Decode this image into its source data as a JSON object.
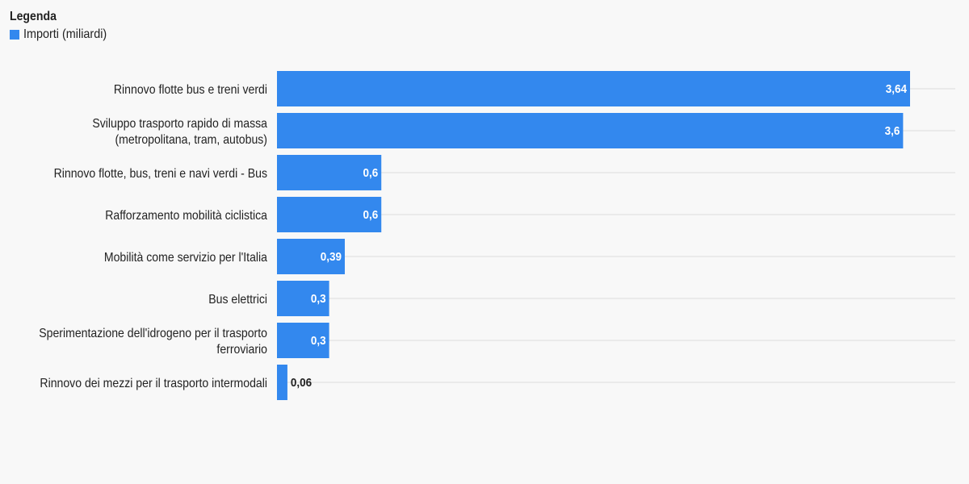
{
  "legend": {
    "title": "Legenda",
    "item_label": "Importi (miliardi)",
    "color": "#3388ee"
  },
  "chart_data": {
    "type": "bar",
    "orientation": "horizontal",
    "categories": [
      "Rinnovo flotte bus e treni verdi",
      "Sviluppo trasporto rapido di massa (metropolitana, tram, autobus)",
      "Rinnovo flotte, bus, treni e navi verdi - Bus",
      "Rafforzamento mobilità ciclistica",
      "Mobilità come servizio per l'Italia",
      "Bus elettrici",
      "Sperimentazione dell'idrogeno per il trasporto ferroviario",
      "Rinnovo dei mezzi per il trasporto intermodali"
    ],
    "category_lines": [
      [
        "Rinnovo flotte bus e treni verdi"
      ],
      [
        "Sviluppo trasporto rapido di massa",
        "(metropolitana, tram, autobus)"
      ],
      [
        "Rinnovo flotte, bus, treni e navi verdi - Bus"
      ],
      [
        "Rafforzamento mobilità ciclistica"
      ],
      [
        "Mobilità come servizio per l'Italia"
      ],
      [
        "Bus elettrici"
      ],
      [
        "Sperimentazione dell'idrogeno per il trasporto",
        "ferroviario"
      ],
      [
        "Rinnovo dei mezzi per il trasporto intermodali"
      ]
    ],
    "series": [
      {
        "name": "Importi (miliardi)",
        "values": [
          3.64,
          3.6,
          0.6,
          0.6,
          0.39,
          0.3,
          0.3,
          0.06
        ],
        "labels": [
          "3,64",
          "3,6",
          "0,6",
          "0,6",
          "0,39",
          "0,3",
          "0,3",
          "0,06"
        ]
      }
    ],
    "xlim": [
      0,
      3.9
    ],
    "grid": true,
    "legend_position": "top-left",
    "colors": {
      "bar": "#3388ee",
      "grid": "#e6e6e6",
      "label_inside": "#ffffff",
      "label_outside": "#222222"
    }
  }
}
